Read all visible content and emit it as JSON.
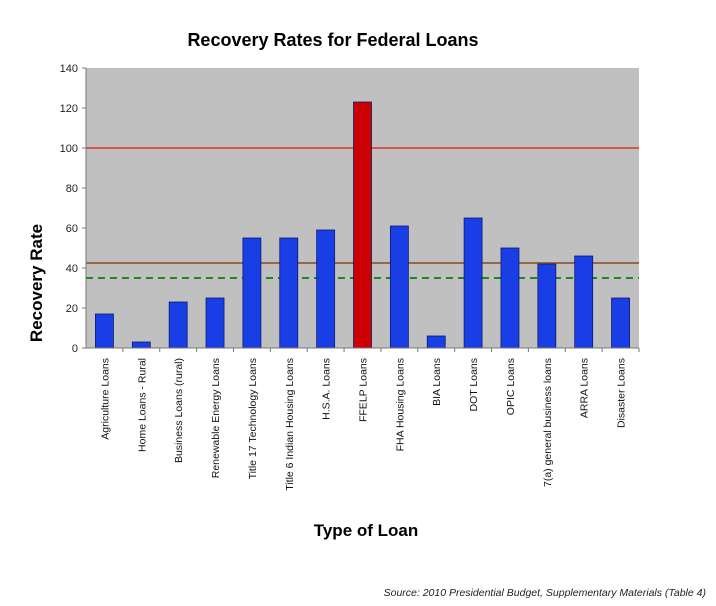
{
  "chart_data": {
    "type": "bar",
    "title": "Recovery Rates for Federal Loans",
    "xlabel": "Type of Loan",
    "ylabel": "Recovery Rate",
    "ylim": [
      0,
      140
    ],
    "yticks": [
      0,
      20,
      40,
      60,
      80,
      100,
      120,
      140
    ],
    "grid": false,
    "legend": "none",
    "categories": [
      "Agriculture Loans",
      "Home Loans - Rural",
      "Business Loans (rural)",
      "Renewable Energy Loans",
      "Title 17 Technology Loans",
      "Title 6 Indian Housing Loans",
      "H.S.A. Loans",
      "FFELP Loans",
      "FHA Housing Loans",
      "BIA Loans",
      "DOT Loans",
      "OPIC Loans",
      "7(a) general business loans",
      "ARRA Loans",
      "Disaster Loans"
    ],
    "values": [
      17,
      3,
      23,
      25,
      55,
      55,
      59,
      123,
      61,
      6,
      65,
      50,
      42,
      46,
      25
    ],
    "bar_colors": [
      "#1a3ee6",
      "#1a3ee6",
      "#1a3ee6",
      "#1a3ee6",
      "#1a3ee6",
      "#1a3ee6",
      "#1a3ee6",
      "#cc0000",
      "#1a3ee6",
      "#1a3ee6",
      "#1a3ee6",
      "#1a3ee6",
      "#1a3ee6",
      "#1a3ee6",
      "#1a3ee6"
    ],
    "reference_lines": [
      {
        "value": 100,
        "color": "#e03020",
        "style": "solid"
      },
      {
        "value": 42.5,
        "color": "#8b4a1a",
        "style": "solid"
      },
      {
        "value": 35,
        "color": "#1a8a1a",
        "style": "dashed"
      }
    ],
    "plot_background": "#c0c0c0"
  },
  "source": "Source:  2010 Presidential Budget, Supplementary Materials (Table 4)"
}
